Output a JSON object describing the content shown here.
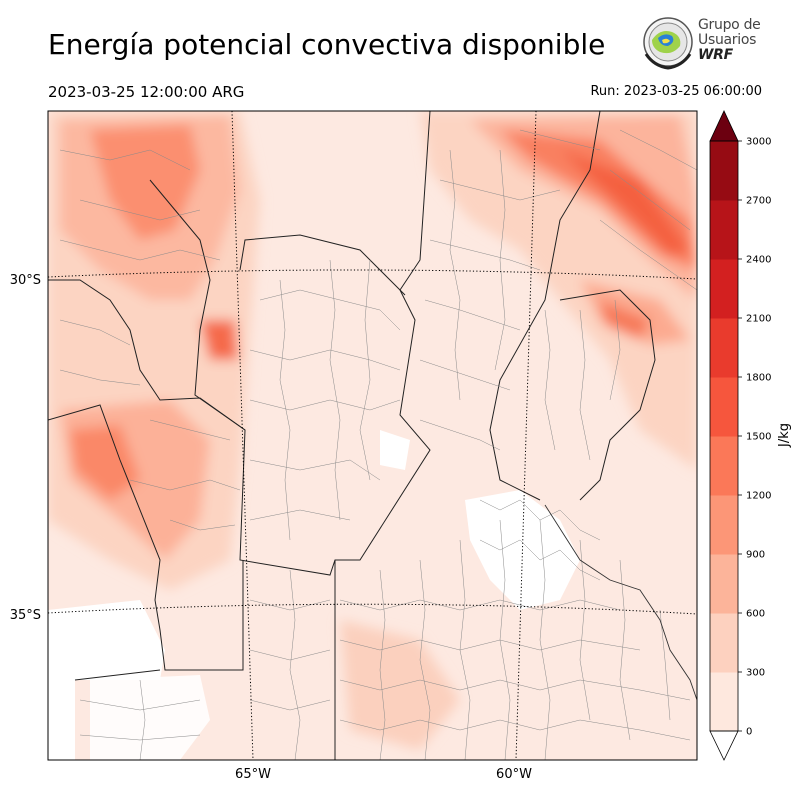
{
  "header": {
    "title": "Energía potencial convectiva disponible",
    "valid_time": "2023-03-25 12:00:00 ARG",
    "run_time": "Run: 2023-03-25 06:00:00"
  },
  "logo": {
    "line1": "Grupo de",
    "line2": "Usuarios",
    "line3": "WRF"
  },
  "map": {
    "lat_labels": [
      "30°S",
      "35°S"
    ],
    "lon_labels": [
      "65°W",
      "60°W"
    ]
  },
  "colorbar": {
    "label": "J/kg",
    "ticks": [
      "0",
      "300",
      "600",
      "900",
      "1200",
      "1500",
      "1800",
      "2100",
      "2400",
      "2700",
      "3000"
    ],
    "colors": [
      "#fee8de",
      "#fdd1bf",
      "#fcb49a",
      "#fc9677",
      "#fb7858",
      "#f6563d",
      "#e93b2d",
      "#d32020",
      "#b71419",
      "#960b13",
      "#6c0010"
    ],
    "extend": "both"
  },
  "colors": {
    "background_low": "#fde9e1",
    "border_country": "#222222",
    "border_province": "#888888",
    "gridline": "#000000"
  }
}
